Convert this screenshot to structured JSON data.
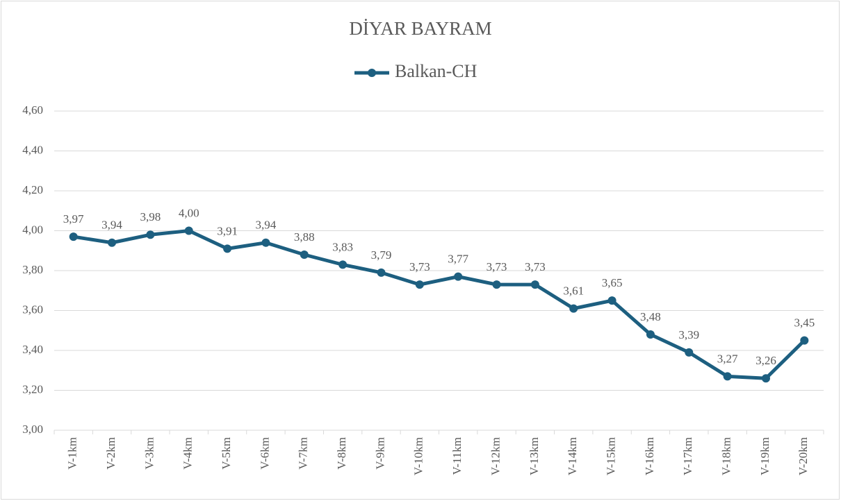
{
  "chart_data": {
    "type": "line",
    "title": "DİYAR BAYRAM",
    "categories": [
      "V-1km",
      "V-2km",
      "V-3km",
      "V-4km",
      "V-5km",
      "V-6km",
      "V-7km",
      "V-8km",
      "V-9km",
      "V-10km",
      "V-11km",
      "V-12km",
      "V-13km",
      "V-14km",
      "V-15km",
      "V-16km",
      "V-17km",
      "V-18km",
      "V-19km",
      "V-20km"
    ],
    "series": [
      {
        "name": "Balkan-CH",
        "color": "#1d5f80",
        "values": [
          3.97,
          3.94,
          3.98,
          4.0,
          3.91,
          3.94,
          3.88,
          3.83,
          3.79,
          3.73,
          3.77,
          3.73,
          3.73,
          3.61,
          3.65,
          3.48,
          3.39,
          3.27,
          3.26,
          3.45
        ],
        "value_labels": [
          "3,97",
          "3,94",
          "3,98",
          "4,00",
          "3,91",
          "3,94",
          "3,88",
          "3,83",
          "3,79",
          "3,73",
          "3,77",
          "3,73",
          "3,73",
          "3,61",
          "3,65",
          "3,48",
          "3,39",
          "3,27",
          "3,26",
          "3,45"
        ]
      }
    ],
    "ylim": [
      3.0,
      4.6
    ],
    "yticks": [
      {
        "value": 3.0,
        "label": "3,00"
      },
      {
        "value": 3.2,
        "label": "3,20"
      },
      {
        "value": 3.4,
        "label": "3,40"
      },
      {
        "value": 3.6,
        "label": "3,60"
      },
      {
        "value": 3.8,
        "label": "3,80"
      },
      {
        "value": 4.0,
        "label": "4,00"
      },
      {
        "value": 4.2,
        "label": "4,20"
      },
      {
        "value": 4.4,
        "label": "4,40"
      },
      {
        "value": 4.6,
        "label": "4,60"
      }
    ],
    "grid": true,
    "legend": "top"
  }
}
